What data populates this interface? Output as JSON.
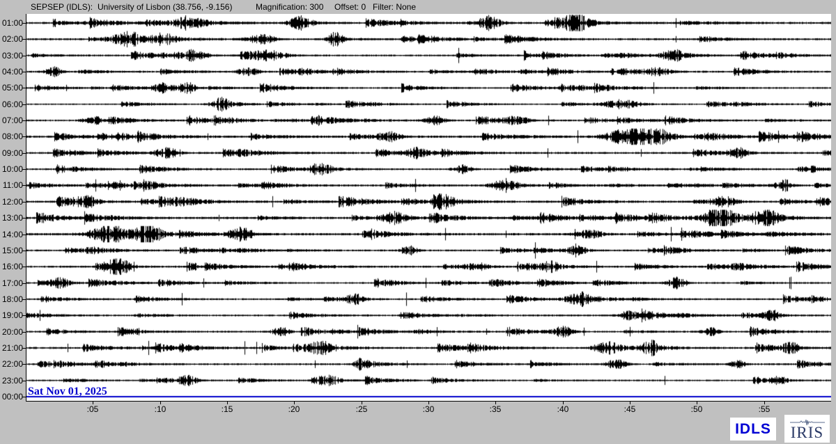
{
  "header": {
    "station": "SEPSEP (IDLS):",
    "location": "University of Lisbon (38.756, -9.156)",
    "magnification": "Magnification: 300",
    "offset": "Offset: 0",
    "filter": "Filter: None"
  },
  "footer": {
    "date": "Sat Nov 01, 2025",
    "idls_logo": "IDLS",
    "iris_logo": "IRIS"
  },
  "colors": {
    "background": "#c0c0c0",
    "plot_background": "#ffffff",
    "trace": "#000000",
    "current_hour_line": "#0000cc",
    "date_text": "#0000cc",
    "idls_text": "#0000d4",
    "iris_text": "#2b3a67"
  },
  "chart_data": {
    "type": "line",
    "subtype": "helicorder-24h",
    "title": "SEPSEP (IDLS) 24-hour helicorder display",
    "station": "SEPSEP",
    "network": "IDLS",
    "station_description": "University of Lisbon",
    "latitude": 38.756,
    "longitude": -9.156,
    "magnification": 300,
    "offset": 0,
    "filter": "None",
    "date": "Sat Nov 01, 2025",
    "minutes_per_row": 60,
    "x_ticks": [
      ":05",
      ":10",
      ":15",
      ":20",
      ":25",
      ":30",
      ":35",
      ":40",
      ":45",
      ":50",
      ":55"
    ],
    "x_tick_minutes": [
      5,
      10,
      15,
      20,
      25,
      30,
      35,
      40,
      45,
      50,
      55
    ],
    "rows": [
      {
        "label": "01:00",
        "activity": 1.05,
        "flat": false,
        "seed": 101,
        "events": [
          {
            "m": 12,
            "a": 9,
            "w": 1.0
          },
          {
            "m": 20.5,
            "a": 8,
            "w": 0.8
          },
          {
            "m": 34.5,
            "a": 10,
            "w": 0.8
          },
          {
            "m": 41,
            "a": 8,
            "w": 1.0
          }
        ]
      },
      {
        "label": "02:00",
        "activity": 1.0,
        "flat": false,
        "seed": 102,
        "events": [
          {
            "m": 7.5,
            "a": 9,
            "w": 1.2
          },
          {
            "m": 10,
            "a": 8,
            "w": 0.8
          },
          {
            "m": 17.5,
            "a": 7,
            "w": 1.0
          },
          {
            "m": 23,
            "a": 8,
            "w": 0.6
          }
        ]
      },
      {
        "label": "03:00",
        "activity": 0.9,
        "flat": false,
        "seed": 103,
        "events": [
          {
            "m": 12.5,
            "a": 7,
            "w": 0.8
          },
          {
            "m": 18,
            "a": 6,
            "w": 1.2
          },
          {
            "m": 48,
            "a": 6,
            "w": 0.8
          }
        ]
      },
      {
        "label": "04:00",
        "activity": 0.9,
        "flat": false,
        "seed": 104,
        "events": [
          {
            "m": 2,
            "a": 7,
            "w": 0.6
          },
          {
            "m": 16.5,
            "a": 6,
            "w": 0.8
          },
          {
            "m": 47,
            "a": 5,
            "w": 1.0
          }
        ]
      },
      {
        "label": "05:00",
        "activity": 0.85,
        "flat": false,
        "seed": 105,
        "events": [
          {
            "m": 10,
            "a": 7,
            "w": 0.6
          },
          {
            "m": 12,
            "a": 8,
            "w": 0.5
          }
        ]
      },
      {
        "label": "06:00",
        "activity": 0.7,
        "flat": false,
        "seed": 106,
        "events": [
          {
            "m": 14.5,
            "a": 6,
            "w": 0.9
          },
          {
            "m": 44,
            "a": 5,
            "w": 1.2
          }
        ]
      },
      {
        "label": "07:00",
        "activity": 0.9,
        "flat": false,
        "seed": 107,
        "events": [
          {
            "m": 5,
            "a": 6,
            "w": 0.8
          },
          {
            "m": 30.5,
            "a": 7,
            "w": 0.7
          },
          {
            "m": 36.5,
            "a": 6,
            "w": 0.8
          }
        ]
      },
      {
        "label": "08:00",
        "activity": 1.1,
        "flat": false,
        "seed": 108,
        "events": [
          {
            "m": 27,
            "a": 7,
            "w": 0.8
          },
          {
            "m": 44.5,
            "a": 11,
            "w": 1.5
          },
          {
            "m": 47,
            "a": 8,
            "w": 1.0
          }
        ]
      },
      {
        "label": "09:00",
        "activity": 1.0,
        "flat": false,
        "seed": 109,
        "events": [
          {
            "m": 10.5,
            "a": 7,
            "w": 0.9
          },
          {
            "m": 29,
            "a": 9,
            "w": 0.5
          },
          {
            "m": 53,
            "a": 7,
            "w": 0.8
          }
        ]
      },
      {
        "label": "10:00",
        "activity": 0.9,
        "flat": false,
        "seed": 110,
        "events": [
          {
            "m": 22,
            "a": 6,
            "w": 0.8
          },
          {
            "m": 32.5,
            "a": 6,
            "w": 0.7
          }
        ]
      },
      {
        "label": "11:00",
        "activity": 1.0,
        "flat": false,
        "seed": 111,
        "events": [
          {
            "m": 35.5,
            "a": 8,
            "w": 0.9
          },
          {
            "m": 56.5,
            "a": 9,
            "w": 0.6
          }
        ]
      },
      {
        "label": "12:00",
        "activity": 1.05,
        "flat": false,
        "seed": 112,
        "events": [
          {
            "m": 4.5,
            "a": 8,
            "w": 0.8
          },
          {
            "m": 31,
            "a": 7,
            "w": 0.8
          },
          {
            "m": 52,
            "a": 7,
            "w": 0.9
          }
        ]
      },
      {
        "label": "13:00",
        "activity": 1.1,
        "flat": false,
        "seed": 113,
        "events": [
          {
            "m": 27.5,
            "a": 7,
            "w": 0.8
          },
          {
            "m": 51.5,
            "a": 9,
            "w": 1.2
          },
          {
            "m": 55,
            "a": 10,
            "w": 1.0
          }
        ]
      },
      {
        "label": "14:00",
        "activity": 1.15,
        "flat": false,
        "seed": 114,
        "events": [
          {
            "m": 6,
            "a": 10,
            "w": 1.5
          },
          {
            "m": 9,
            "a": 11,
            "w": 1.0
          },
          {
            "m": 16,
            "a": 10,
            "w": 0.9
          },
          {
            "m": 42,
            "a": 6,
            "w": 1.0
          }
        ]
      },
      {
        "label": "15:00",
        "activity": 0.9,
        "flat": false,
        "seed": 115,
        "events": [
          {
            "m": 28.5,
            "a": 7,
            "w": 0.6
          },
          {
            "m": 41,
            "a": 6,
            "w": 0.8
          }
        ]
      },
      {
        "label": "16:00",
        "activity": 1.0,
        "flat": false,
        "seed": 116,
        "events": [
          {
            "m": 6.8,
            "a": 11,
            "w": 1.0
          },
          {
            "m": 33.5,
            "a": 6,
            "w": 0.8
          },
          {
            "m": 39,
            "a": 6,
            "w": 0.7
          }
        ]
      },
      {
        "label": "17:00",
        "activity": 0.85,
        "flat": false,
        "seed": 117,
        "events": [
          {
            "m": 2.5,
            "a": 6,
            "w": 0.8
          },
          {
            "m": 48.5,
            "a": 8,
            "w": 0.7
          }
        ]
      },
      {
        "label": "18:00",
        "activity": 0.9,
        "flat": false,
        "seed": 118,
        "events": [
          {
            "m": 24.5,
            "a": 7,
            "w": 0.7
          },
          {
            "m": 41,
            "a": 7,
            "w": 0.9
          }
        ]
      },
      {
        "label": "19:00",
        "activity": 0.9,
        "flat": false,
        "seed": 119,
        "events": [
          {
            "m": 45,
            "a": 7,
            "w": 0.8
          },
          {
            "m": 55.5,
            "a": 8,
            "w": 0.6
          }
        ]
      },
      {
        "label": "20:00",
        "activity": 0.9,
        "flat": false,
        "seed": 120,
        "events": [
          {
            "m": 19,
            "a": 6,
            "w": 0.7
          },
          {
            "m": 40,
            "a": 7,
            "w": 0.8
          },
          {
            "m": 51,
            "a": 7,
            "w": 0.6
          }
        ]
      },
      {
        "label": "21:00",
        "activity": 1.0,
        "flat": false,
        "seed": 121,
        "events": [
          {
            "m": 22,
            "a": 8,
            "w": 0.9
          },
          {
            "m": 43,
            "a": 8,
            "w": 0.8
          },
          {
            "m": 46.5,
            "a": 9,
            "w": 0.7
          },
          {
            "m": 57,
            "a": 8,
            "w": 0.6
          }
        ]
      },
      {
        "label": "22:00",
        "activity": 0.9,
        "flat": false,
        "seed": 122,
        "events": [
          {
            "m": 25,
            "a": 7,
            "w": 0.6
          },
          {
            "m": 44,
            "a": 8,
            "w": 0.7
          },
          {
            "m": 53,
            "a": 6,
            "w": 0.6
          }
        ]
      },
      {
        "label": "23:00",
        "activity": 0.8,
        "flat": false,
        "seed": 123,
        "events": [
          {
            "m": 12,
            "a": 7,
            "w": 0.7
          },
          {
            "m": 22.5,
            "a": 6,
            "w": 0.8
          },
          {
            "m": 56,
            "a": 5,
            "w": 0.6
          }
        ]
      },
      {
        "label": "00:00",
        "activity": 0,
        "flat": true,
        "seed": 124,
        "events": []
      }
    ]
  }
}
